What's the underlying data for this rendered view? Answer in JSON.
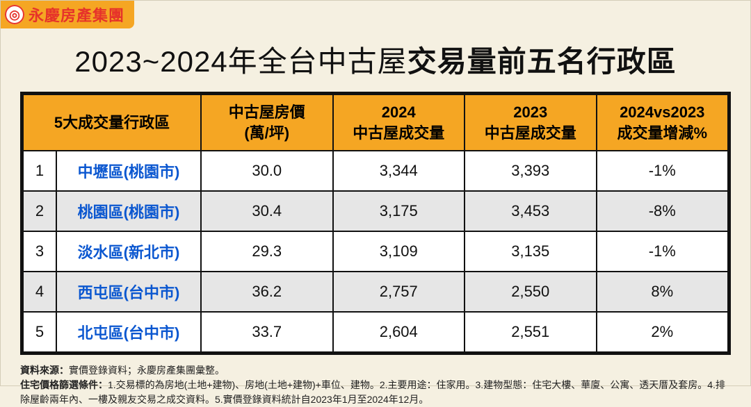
{
  "brand": {
    "logo_glyph": "◎",
    "name": "永慶房產集團"
  },
  "title": {
    "prefix": "2023~2024年全台中古屋",
    "bold": "交易量前五名行政區"
  },
  "table": {
    "headers": {
      "rank_district": "5大成交量行政區",
      "price": "中古屋房價\n(萬/坪)",
      "vol2024": "2024\n中古屋成交量",
      "vol2023": "2023\n中古屋成交量",
      "delta": "2024vs2023\n成交量增減%"
    },
    "rows": [
      {
        "rank": "1",
        "district": "中壢區(桃園市)",
        "price": "30.0",
        "vol2024": "3,344",
        "vol2023": "3,393",
        "delta": "-1%"
      },
      {
        "rank": "2",
        "district": "桃園區(桃園市)",
        "price": "30.4",
        "vol2024": "3,175",
        "vol2023": "3,453",
        "delta": "-8%"
      },
      {
        "rank": "3",
        "district": "淡水區(新北市)",
        "price": "29.3",
        "vol2024": "3,109",
        "vol2023": "3,135",
        "delta": "-1%"
      },
      {
        "rank": "4",
        "district": "西屯區(台中市)",
        "price": "36.2",
        "vol2024": "2,757",
        "vol2023": "2,550",
        "delta": "8%"
      },
      {
        "rank": "5",
        "district": "北屯區(台中市)",
        "price": "33.7",
        "vol2024": "2,604",
        "vol2023": "2,551",
        "delta": "2%"
      }
    ]
  },
  "footer": {
    "source_label": "資料來源：",
    "source_text": "實價登錄資料；永慶房產集團彙整。",
    "cond_label": "住宅價格篩選條件：",
    "cond_text": "1.交易標的為房地(土地+建物)、房地(土地+建物)+車位、建物。2.主要用途：住家用。3.建物型態：住宅大樓、華廈、公寓、透天厝及套房。4.排除屋齡兩年內、一樓及親友交易之成交資料。5.實價登錄資料統計自2023年1月至2024年12月。"
  },
  "colors": {
    "page_bg": "#f5f0e1",
    "header_bg": "#f5a623",
    "row_alt_bg": "#e6e6e6",
    "district_color": "#0b57d0",
    "border": "#111111",
    "brand_red": "#e6332a"
  }
}
